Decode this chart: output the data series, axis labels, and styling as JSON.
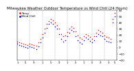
{
  "title": "Milwaukee Weather Outdoor Temperature vs Wind Chill (24 Hours)",
  "title_fontsize": 3.8,
  "background_color": "#ffffff",
  "plot_bg": "#ffffff",
  "temp_color": "#ff0000",
  "windchill_color": "#0000cc",
  "dot_size": 1.2,
  "xlim": [
    0,
    48
  ],
  "ylim": [
    -20,
    60
  ],
  "yticks": [
    -20,
    -10,
    0,
    10,
    20,
    30,
    40,
    50,
    60
  ],
  "ytick_fontsize": 3.0,
  "xtick_fontsize": 2.8,
  "grid_color": "#999999",
  "legend_fontsize": 3.0,
  "temp_x": [
    0,
    1,
    2,
    3,
    4,
    5,
    6,
    7,
    8,
    9,
    10,
    11,
    12,
    13,
    14,
    15,
    16,
    17,
    18,
    19,
    20,
    21,
    22,
    23,
    24,
    25,
    26,
    27,
    28,
    29,
    30,
    31,
    32,
    33,
    34,
    35,
    36,
    37,
    38,
    39,
    40,
    41,
    42,
    43,
    44,
    45,
    46,
    47
  ],
  "temp_y": [
    10,
    8,
    7,
    6,
    5,
    4,
    6,
    5,
    4,
    3,
    8,
    14,
    22,
    30,
    38,
    43,
    46,
    44,
    40,
    36,
    30,
    22,
    18,
    20,
    25,
    30,
    34,
    32,
    26,
    20,
    16,
    14,
    18,
    22,
    20,
    17,
    14,
    18,
    24,
    28,
    26,
    24,
    20,
    17,
    16,
    14,
    46,
    56
  ],
  "wc_x": [
    0,
    1,
    2,
    3,
    4,
    5,
    6,
    7,
    8,
    9,
    10,
    11,
    12,
    13,
    14,
    15,
    16,
    17,
    18,
    19,
    20,
    21,
    22,
    23,
    24,
    25,
    26,
    27,
    28,
    29,
    30,
    31,
    32,
    33,
    34,
    35,
    36,
    37,
    38,
    39,
    40,
    41,
    42,
    43,
    44,
    45,
    46,
    47
  ],
  "wc_y": [
    6,
    4,
    3,
    2,
    1,
    0,
    2,
    1,
    0,
    -2,
    2,
    8,
    16,
    24,
    32,
    38,
    40,
    38,
    34,
    30,
    22,
    14,
    10,
    12,
    18,
    24,
    28,
    26,
    18,
    12,
    8,
    6,
    12,
    16,
    14,
    11,
    8,
    12,
    18,
    22,
    20,
    18,
    14,
    11,
    10,
    8,
    40,
    50
  ],
  "xtick_positions": [
    0,
    4,
    8,
    12,
    16,
    20,
    24,
    28,
    32,
    36,
    40,
    44,
    47
  ],
  "xtick_labels": [
    "1",
    "5",
    "9",
    "1",
    "5",
    "9",
    "1",
    "5",
    "1",
    "5",
    "9",
    "3",
    "5"
  ]
}
